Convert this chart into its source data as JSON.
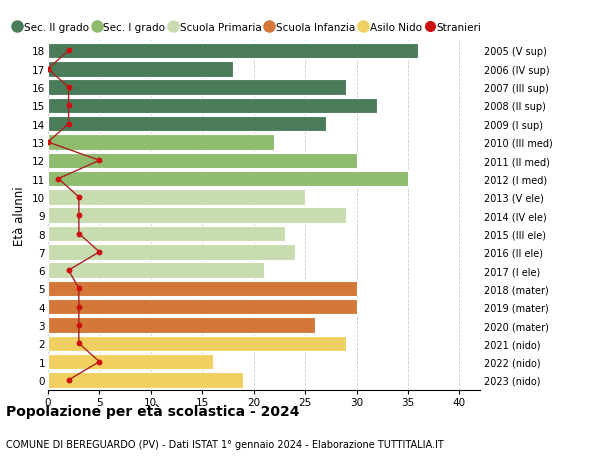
{
  "ages": [
    18,
    17,
    16,
    15,
    14,
    13,
    12,
    11,
    10,
    9,
    8,
    7,
    6,
    5,
    4,
    3,
    2,
    1,
    0
  ],
  "years": [
    "2005 (V sup)",
    "2006 (IV sup)",
    "2007 (III sup)",
    "2008 (II sup)",
    "2009 (I sup)",
    "2010 (III med)",
    "2011 (II med)",
    "2012 (I med)",
    "2013 (V ele)",
    "2014 (IV ele)",
    "2015 (III ele)",
    "2016 (II ele)",
    "2017 (I ele)",
    "2018 (mater)",
    "2019 (mater)",
    "2020 (mater)",
    "2021 (nido)",
    "2022 (nido)",
    "2023 (nido)"
  ],
  "bar_values": [
    36,
    18,
    29,
    32,
    27,
    22,
    30,
    35,
    25,
    29,
    23,
    24,
    21,
    30,
    30,
    26,
    29,
    16,
    19
  ],
  "bar_colors": [
    "#4a7c59",
    "#4a7c59",
    "#4a7c59",
    "#4a7c59",
    "#4a7c59",
    "#8fbc6f",
    "#8fbc6f",
    "#8fbc6f",
    "#c8dcb0",
    "#c8dcb0",
    "#c8dcb0",
    "#c8dcb0",
    "#c8dcb0",
    "#d4783a",
    "#d4783a",
    "#d4783a",
    "#f0d060",
    "#f0d060",
    "#f0d060"
  ],
  "stranieri_values": [
    2,
    0,
    2,
    2,
    2,
    0,
    5,
    1,
    3,
    3,
    3,
    5,
    2,
    3,
    3,
    3,
    3,
    5,
    2
  ],
  "stranieri_color": "#cc1111",
  "line_color": "#aa2222",
  "title": "Popolazione per età scolastica - 2024",
  "subtitle": "COMUNE DI BEREGUARDO (PV) - Dati ISTAT 1° gennaio 2024 - Elaborazione TUTTITALIA.IT",
  "ylabel_left": "Età alunni",
  "xlim": [
    0,
    42
  ],
  "xticks": [
    0,
    5,
    10,
    15,
    20,
    25,
    30,
    35,
    40
  ],
  "legend_labels": [
    "Sec. II grado",
    "Sec. I grado",
    "Scuola Primaria",
    "Scuola Infanzia",
    "Asilo Nido",
    "Stranieri"
  ],
  "legend_colors": [
    "#4a7c59",
    "#8fbc6f",
    "#c8dcb0",
    "#d4783a",
    "#f0d060",
    "#cc1111"
  ],
  "bg_color": "#ffffff",
  "grid_color": "#cccccc",
  "bar_height": 0.85
}
